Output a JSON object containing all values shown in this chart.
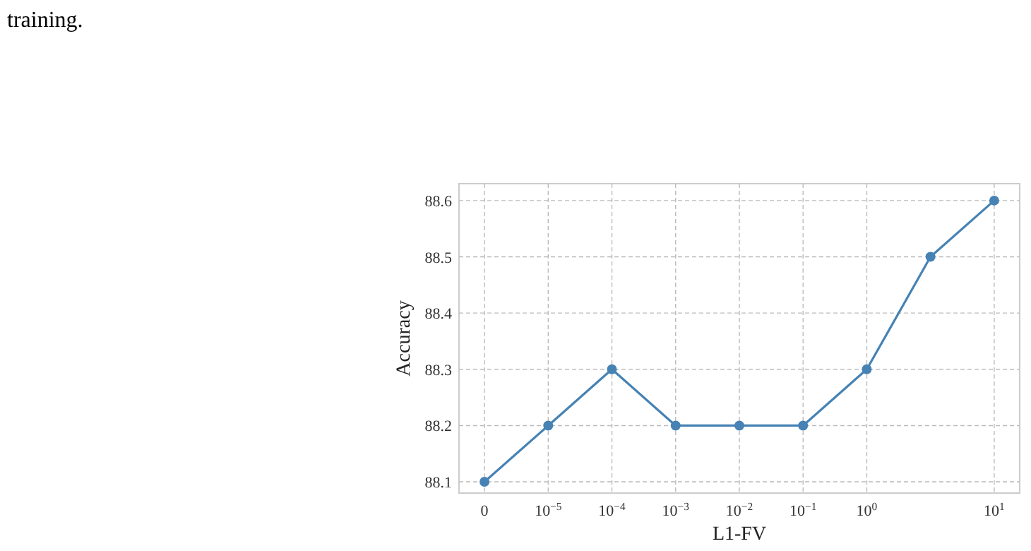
{
  "chart_data": {
    "type": "line",
    "xlabel": "L1-FV",
    "ylabel": "Accuracy",
    "annotations": [
      "training."
    ],
    "categories": [
      "0",
      "10$^{−5}$",
      "10$^{−4}$",
      "10$^{−3}$",
      "10$^{−2}$",
      "10$^{−1}$",
      "10$^{0}$",
      null,
      "10$^{1}$"
    ],
    "series": [
      {
        "color": "#4682b4",
        "values": [
          88.1,
          88.2,
          88.3,
          88.2,
          88.2,
          88.2,
          88.3,
          88.5,
          88.6
        ]
      }
    ],
    "ylim": [
      88.08,
      88.63
    ],
    "yticks": [
      88.1,
      88.2,
      88.3,
      88.4,
      88.5,
      88.6
    ],
    "grid": true,
    "marker": "circle",
    "line_style": "solid"
  }
}
